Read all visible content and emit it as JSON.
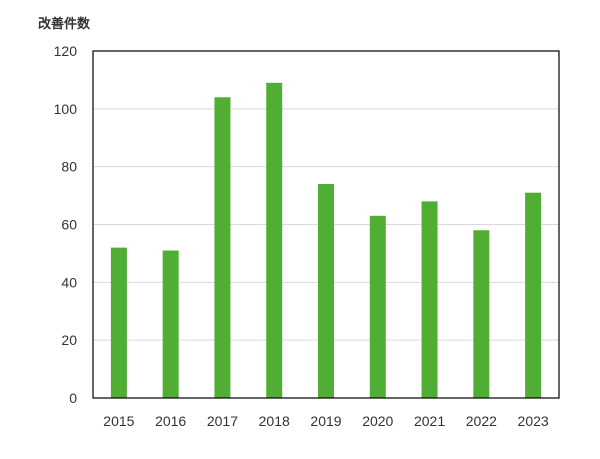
{
  "chart_data": {
    "type": "bar",
    "title": "",
    "xlabel": "",
    "ylabel": "改善件数",
    "categories": [
      "2015",
      "2016",
      "2017",
      "2018",
      "2019",
      "2020",
      "2021",
      "2022",
      "2023"
    ],
    "series": [
      {
        "values": [
          52,
          51,
          104,
          109,
          74,
          63,
          68,
          58,
          71
        ]
      }
    ],
    "ylim": [
      0,
      120
    ],
    "yticks": [
      "0",
      "20",
      "40",
      "60",
      "80",
      "100",
      "120"
    ],
    "grid": true,
    "legend": "none",
    "colors": {
      "bar": "#4fae33",
      "grid": "#d9d9d9",
      "frame": "#000000"
    }
  }
}
